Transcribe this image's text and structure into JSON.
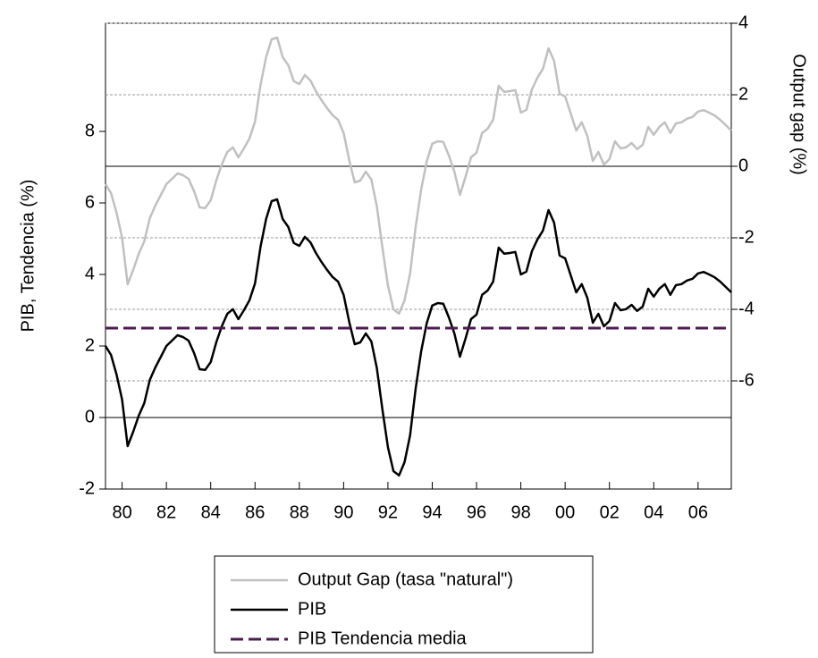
{
  "chart_data": {
    "type": "line",
    "y_label": "PIB, Tendencia (%)",
    "y2_label": "Output gap (%)",
    "x": [
      1979.25,
      1979.5,
      1979.75,
      1980,
      1980.25,
      1980.5,
      1980.75,
      1981,
      1981.25,
      1981.5,
      1981.75,
      1982,
      1982.25,
      1982.5,
      1982.75,
      1983,
      1983.25,
      1983.5,
      1983.75,
      1984,
      1984.25,
      1984.5,
      1984.75,
      1985,
      1985.25,
      1985.5,
      1985.75,
      1986,
      1986.25,
      1986.5,
      1986.75,
      1987,
      1987.25,
      1987.5,
      1987.75,
      1988,
      1988.25,
      1988.5,
      1988.75,
      1989,
      1989.25,
      1989.5,
      1989.75,
      1990,
      1990.25,
      1990.5,
      1990.75,
      1991,
      1991.25,
      1991.5,
      1991.75,
      1992,
      1992.25,
      1992.5,
      1992.75,
      1993,
      1993.25,
      1993.5,
      1993.75,
      1994,
      1994.25,
      1994.5,
      1994.75,
      1995,
      1995.25,
      1995.5,
      1995.75,
      1996,
      1996.25,
      1996.5,
      1996.75,
      1997,
      1997.25,
      1997.5,
      1997.75,
      1998,
      1998.25,
      1998.5,
      1998.75,
      1999,
      1999.25,
      1999.5,
      1999.75,
      2000,
      2000.25,
      2000.5,
      2000.75,
      2001,
      2001.25,
      2001.5,
      2001.75,
      2002,
      2002.25,
      2002.5,
      2002.75,
      2003,
      2003.25,
      2003.5,
      2003.75,
      2004,
      2004.25,
      2004.5,
      2004.75,
      2005,
      2005.25,
      2005.5,
      2005.75,
      2006,
      2006.25,
      2006.5,
      2006.75,
      2007,
      2007.25,
      2007.5
    ],
    "xlim": [
      1979.25,
      2007.5
    ],
    "xticks": [
      {
        "value": 1980,
        "label": "80"
      },
      {
        "value": 1982,
        "label": "82"
      },
      {
        "value": 1984,
        "label": "84"
      },
      {
        "value": 1986,
        "label": "86"
      },
      {
        "value": 1988,
        "label": "88"
      },
      {
        "value": 1990,
        "label": "90"
      },
      {
        "value": 1992,
        "label": "92"
      },
      {
        "value": 1994,
        "label": "94"
      },
      {
        "value": 1996,
        "label": "96"
      },
      {
        "value": 1998,
        "label": "98"
      },
      {
        "value": 2000,
        "label": "00"
      },
      {
        "value": 2002,
        "label": "02"
      },
      {
        "value": 2004,
        "label": "04"
      },
      {
        "value": 2006,
        "label": "06"
      }
    ],
    "ylim": [
      -2,
      11.025
    ],
    "yticks": [
      -2,
      0,
      2,
      4,
      6,
      8
    ],
    "y2lim": [
      -9.025,
      4
    ],
    "y2ticks": [
      -6,
      -4,
      -2,
      0,
      2,
      4
    ],
    "grid": "y2",
    "series": [
      {
        "name": "Output Gap (tasa \"natural\")",
        "color": "#c0c0c0",
        "axis": "y2",
        "style": "solid",
        "values": [
          -0.5,
          -0.75,
          -1.3,
          -2.0,
          -3.3,
          -2.9,
          -2.45,
          -2.1,
          -1.45,
          -1.1,
          -0.8,
          -0.5,
          -0.35,
          -0.2,
          -0.25,
          -0.35,
          -0.7,
          -1.15,
          -1.17,
          -0.95,
          -0.4,
          0.05,
          0.4,
          0.53,
          0.25,
          0.5,
          0.78,
          1.25,
          2.28,
          3.05,
          3.55,
          3.6,
          3.05,
          2.83,
          2.38,
          2.3,
          2.55,
          2.4,
          2.1,
          1.85,
          1.63,
          1.43,
          1.3,
          0.93,
          0.18,
          -0.45,
          -0.4,
          -0.15,
          -0.37,
          -1.12,
          -2.27,
          -3.33,
          -4.0,
          -4.12,
          -3.75,
          -3.0,
          -1.7,
          -0.65,
          0.13,
          0.63,
          0.7,
          0.68,
          0.3,
          -0.15,
          -0.8,
          -0.3,
          0.25,
          0.38,
          0.93,
          1.05,
          1.3,
          2.25,
          2.08,
          2.1,
          2.13,
          1.5,
          1.58,
          2.15,
          2.48,
          2.73,
          3.3,
          2.95,
          2.03,
          1.95,
          1.48,
          1.0,
          1.23,
          0.85,
          0.15,
          0.4,
          0.05,
          0.2,
          0.7,
          0.5,
          0.53,
          0.65,
          0.48,
          0.6,
          1.1,
          0.88,
          1.1,
          1.23,
          0.93,
          1.2,
          1.23,
          1.33,
          1.38,
          1.53,
          1.57,
          1.5,
          1.42,
          1.3,
          1.15,
          1.0
        ]
      },
      {
        "name": "PIB",
        "color": "#000000",
        "style": "solid",
        "values": [
          2.0,
          1.75,
          1.2,
          0.5,
          -0.8,
          -0.4,
          0.05,
          0.4,
          1.05,
          1.4,
          1.7,
          2.0,
          2.15,
          2.3,
          2.25,
          2.15,
          1.8,
          1.35,
          1.33,
          1.55,
          2.1,
          2.55,
          2.9,
          3.03,
          2.75,
          3.0,
          3.28,
          3.75,
          4.78,
          5.55,
          6.05,
          6.1,
          5.55,
          5.33,
          4.88,
          4.8,
          5.05,
          4.9,
          4.6,
          4.35,
          4.13,
          3.93,
          3.8,
          3.43,
          2.68,
          2.05,
          2.1,
          2.35,
          2.13,
          1.38,
          0.23,
          -0.83,
          -1.5,
          -1.62,
          -1.25,
          -0.5,
          0.8,
          1.85,
          2.63,
          3.13,
          3.2,
          3.18,
          2.8,
          2.35,
          1.7,
          2.2,
          2.75,
          2.88,
          3.43,
          3.55,
          3.8,
          4.75,
          4.58,
          4.6,
          4.63,
          4.0,
          4.08,
          4.65,
          4.98,
          5.23,
          5.8,
          5.45,
          4.53,
          4.45,
          3.98,
          3.5,
          3.73,
          3.35,
          2.65,
          2.9,
          2.55,
          2.7,
          3.2,
          3.0,
          3.03,
          3.15,
          2.98,
          3.1,
          3.6,
          3.38,
          3.6,
          3.73,
          3.43,
          3.7,
          3.73,
          3.83,
          3.88,
          4.03,
          4.07,
          4.0,
          3.92,
          3.8,
          3.65,
          3.5
        ]
      },
      {
        "name": "PIB Tendencia media",
        "color": "#4e1a52",
        "style": "dashed",
        "x": [
          1979.25,
          2007.5
        ],
        "values": [
          2.5,
          2.5
        ]
      }
    ]
  }
}
